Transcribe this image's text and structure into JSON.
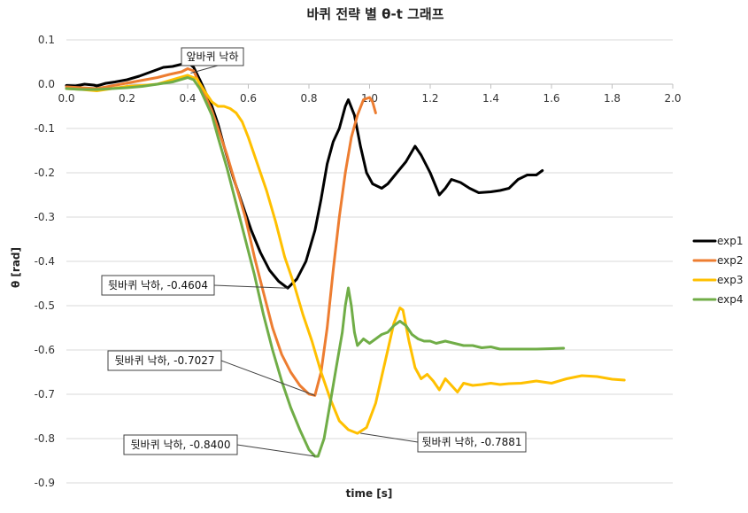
{
  "chart_data": {
    "type": "line",
    "title": "바퀴 전략 별 θ-t 그래프",
    "xlabel": "time [s]",
    "ylabel": "θ [rad]",
    "xlim": [
      0.0,
      2.0
    ],
    "ylim": [
      -0.9,
      0.1
    ],
    "xticks": [
      0.0,
      0.2,
      0.4,
      0.6,
      0.8,
      1.0,
      1.2,
      1.4,
      1.6,
      1.8,
      2.0
    ],
    "yticks": [
      0.1,
      0.0,
      -0.1,
      -0.2,
      -0.3,
      -0.4,
      -0.5,
      -0.6,
      -0.7,
      -0.8,
      -0.9
    ],
    "xtick_labels": [
      "0.0",
      "0.2",
      "0.4",
      "0.6",
      "0.8",
      "1.0",
      "1.2",
      "1.4",
      "1.6",
      "1.8",
      "2.0"
    ],
    "ytick_labels": [
      "0.1",
      "0.0",
      "-0.1",
      "-0.2",
      "-0.3",
      "-0.4",
      "-0.5",
      "-0.6",
      "-0.7",
      "-0.8",
      "-0.9"
    ],
    "grid": true,
    "legend_position": "right",
    "series": [
      {
        "name": "exp1",
        "color": "#000000",
        "points": [
          [
            0.0,
            -0.003
          ],
          [
            0.03,
            -0.004
          ],
          [
            0.06,
            0.0
          ],
          [
            0.09,
            -0.002
          ],
          [
            0.1,
            -0.004
          ],
          [
            0.13,
            0.002
          ],
          [
            0.16,
            0.005
          ],
          [
            0.2,
            0.01
          ],
          [
            0.24,
            0.018
          ],
          [
            0.28,
            0.028
          ],
          [
            0.32,
            0.038
          ],
          [
            0.35,
            0.04
          ],
          [
            0.38,
            0.045
          ],
          [
            0.4,
            0.05
          ],
          [
            0.42,
            0.038
          ],
          [
            0.44,
            0.01
          ],
          [
            0.46,
            -0.02
          ],
          [
            0.48,
            -0.05
          ],
          [
            0.5,
            -0.09
          ],
          [
            0.52,
            -0.14
          ],
          [
            0.55,
            -0.21
          ],
          [
            0.58,
            -0.27
          ],
          [
            0.61,
            -0.33
          ],
          [
            0.64,
            -0.38
          ],
          [
            0.67,
            -0.42
          ],
          [
            0.7,
            -0.445
          ],
          [
            0.73,
            -0.4604
          ],
          [
            0.76,
            -0.44
          ],
          [
            0.79,
            -0.4
          ],
          [
            0.82,
            -0.33
          ],
          [
            0.84,
            -0.26
          ],
          [
            0.86,
            -0.18
          ],
          [
            0.88,
            -0.13
          ],
          [
            0.9,
            -0.1
          ],
          [
            0.92,
            -0.05
          ],
          [
            0.93,
            -0.035
          ],
          [
            0.95,
            -0.07
          ],
          [
            0.97,
            -0.14
          ],
          [
            0.99,
            -0.2
          ],
          [
            1.01,
            -0.225
          ],
          [
            1.04,
            -0.235
          ],
          [
            1.06,
            -0.225
          ],
          [
            1.09,
            -0.2
          ],
          [
            1.12,
            -0.175
          ],
          [
            1.15,
            -0.14
          ],
          [
            1.17,
            -0.16
          ],
          [
            1.2,
            -0.2
          ],
          [
            1.23,
            -0.25
          ],
          [
            1.25,
            -0.235
          ],
          [
            1.27,
            -0.215
          ],
          [
            1.3,
            -0.222
          ],
          [
            1.33,
            -0.235
          ],
          [
            1.36,
            -0.245
          ],
          [
            1.4,
            -0.243
          ],
          [
            1.43,
            -0.24
          ],
          [
            1.46,
            -0.235
          ],
          [
            1.49,
            -0.215
          ],
          [
            1.52,
            -0.205
          ],
          [
            1.55,
            -0.205
          ],
          [
            1.57,
            -0.195
          ]
        ]
      },
      {
        "name": "exp2",
        "color": "#ED7D31",
        "points": [
          [
            0.0,
            -0.006
          ],
          [
            0.05,
            -0.008
          ],
          [
            0.1,
            -0.01
          ],
          [
            0.14,
            -0.005
          ],
          [
            0.18,
            0.0
          ],
          [
            0.22,
            0.005
          ],
          [
            0.26,
            0.01
          ],
          [
            0.3,
            0.015
          ],
          [
            0.34,
            0.022
          ],
          [
            0.38,
            0.028
          ],
          [
            0.4,
            0.035
          ],
          [
            0.42,
            0.03
          ],
          [
            0.44,
            0.0
          ],
          [
            0.46,
            -0.03
          ],
          [
            0.48,
            -0.06
          ],
          [
            0.5,
            -0.1
          ],
          [
            0.53,
            -0.16
          ],
          [
            0.56,
            -0.23
          ],
          [
            0.59,
            -0.3
          ],
          [
            0.62,
            -0.39
          ],
          [
            0.65,
            -0.47
          ],
          [
            0.68,
            -0.55
          ],
          [
            0.71,
            -0.61
          ],
          [
            0.74,
            -0.65
          ],
          [
            0.77,
            -0.68
          ],
          [
            0.8,
            -0.6997
          ],
          [
            0.82,
            -0.7027
          ],
          [
            0.84,
            -0.65
          ],
          [
            0.86,
            -0.55
          ],
          [
            0.88,
            -0.42
          ],
          [
            0.9,
            -0.3
          ],
          [
            0.92,
            -0.2
          ],
          [
            0.94,
            -0.12
          ],
          [
            0.96,
            -0.07
          ],
          [
            0.98,
            -0.035
          ],
          [
            1.0,
            -0.03
          ],
          [
            1.01,
            -0.04
          ],
          [
            1.02,
            -0.065
          ]
        ]
      },
      {
        "name": "exp3",
        "color": "#FFC000",
        "points": [
          [
            0.0,
            -0.01
          ],
          [
            0.05,
            -0.012
          ],
          [
            0.1,
            -0.015
          ],
          [
            0.15,
            -0.01
          ],
          [
            0.2,
            -0.005
          ],
          [
            0.25,
            -0.003
          ],
          [
            0.3,
            0.0
          ],
          [
            0.35,
            0.01
          ],
          [
            0.4,
            0.02
          ],
          [
            0.43,
            0.012
          ],
          [
            0.46,
            -0.02
          ],
          [
            0.48,
            -0.04
          ],
          [
            0.5,
            -0.05
          ],
          [
            0.52,
            -0.05
          ],
          [
            0.54,
            -0.055
          ],
          [
            0.56,
            -0.065
          ],
          [
            0.58,
            -0.085
          ],
          [
            0.6,
            -0.12
          ],
          [
            0.63,
            -0.18
          ],
          [
            0.66,
            -0.24
          ],
          [
            0.69,
            -0.31
          ],
          [
            0.72,
            -0.39
          ],
          [
            0.75,
            -0.45
          ],
          [
            0.78,
            -0.52
          ],
          [
            0.81,
            -0.58
          ],
          [
            0.84,
            -0.65
          ],
          [
            0.87,
            -0.71
          ],
          [
            0.9,
            -0.76
          ],
          [
            0.93,
            -0.78
          ],
          [
            0.96,
            -0.7881
          ],
          [
            0.99,
            -0.775
          ],
          [
            1.02,
            -0.72
          ],
          [
            1.04,
            -0.66
          ],
          [
            1.06,
            -0.6
          ],
          [
            1.08,
            -0.54
          ],
          [
            1.1,
            -0.505
          ],
          [
            1.11,
            -0.51
          ],
          [
            1.13,
            -0.58
          ],
          [
            1.15,
            -0.64
          ],
          [
            1.17,
            -0.665
          ],
          [
            1.19,
            -0.655
          ],
          [
            1.21,
            -0.67
          ],
          [
            1.23,
            -0.69
          ],
          [
            1.25,
            -0.665
          ],
          [
            1.27,
            -0.68
          ],
          [
            1.29,
            -0.695
          ],
          [
            1.31,
            -0.675
          ],
          [
            1.34,
            -0.68
          ],
          [
            1.37,
            -0.678
          ],
          [
            1.4,
            -0.675
          ],
          [
            1.43,
            -0.678
          ],
          [
            1.46,
            -0.676
          ],
          [
            1.5,
            -0.675
          ],
          [
            1.55,
            -0.67
          ],
          [
            1.6,
            -0.675
          ],
          [
            1.65,
            -0.665
          ],
          [
            1.7,
            -0.658
          ],
          [
            1.75,
            -0.66
          ],
          [
            1.8,
            -0.666
          ],
          [
            1.84,
            -0.668
          ]
        ]
      },
      {
        "name": "exp4",
        "color": "#70AD47",
        "points": [
          [
            0.0,
            -0.01
          ],
          [
            0.05,
            -0.012
          ],
          [
            0.1,
            -0.012
          ],
          [
            0.15,
            -0.01
          ],
          [
            0.2,
            -0.008
          ],
          [
            0.25,
            -0.005
          ],
          [
            0.3,
            0.0
          ],
          [
            0.35,
            0.005
          ],
          [
            0.4,
            0.015
          ],
          [
            0.42,
            0.01
          ],
          [
            0.44,
            -0.01
          ],
          [
            0.46,
            -0.04
          ],
          [
            0.48,
            -0.07
          ],
          [
            0.5,
            -0.12
          ],
          [
            0.53,
            -0.19
          ],
          [
            0.56,
            -0.27
          ],
          [
            0.59,
            -0.35
          ],
          [
            0.62,
            -0.43
          ],
          [
            0.65,
            -0.52
          ],
          [
            0.68,
            -0.6
          ],
          [
            0.71,
            -0.67
          ],
          [
            0.74,
            -0.73
          ],
          [
            0.77,
            -0.78
          ],
          [
            0.8,
            -0.825
          ],
          [
            0.82,
            -0.84
          ],
          [
            0.83,
            -0.84
          ],
          [
            0.85,
            -0.8
          ],
          [
            0.87,
            -0.72
          ],
          [
            0.89,
            -0.64
          ],
          [
            0.91,
            -0.56
          ],
          [
            0.92,
            -0.5
          ],
          [
            0.93,
            -0.46
          ],
          [
            0.94,
            -0.5
          ],
          [
            0.95,
            -0.56
          ],
          [
            0.96,
            -0.59
          ],
          [
            0.98,
            -0.575
          ],
          [
            1.0,
            -0.585
          ],
          [
            1.02,
            -0.575
          ],
          [
            1.04,
            -0.565
          ],
          [
            1.06,
            -0.56
          ],
          [
            1.08,
            -0.545
          ],
          [
            1.1,
            -0.535
          ],
          [
            1.12,
            -0.545
          ],
          [
            1.14,
            -0.565
          ],
          [
            1.16,
            -0.575
          ],
          [
            1.18,
            -0.58
          ],
          [
            1.2,
            -0.58
          ],
          [
            1.22,
            -0.585
          ],
          [
            1.25,
            -0.58
          ],
          [
            1.28,
            -0.585
          ],
          [
            1.31,
            -0.59
          ],
          [
            1.34,
            -0.59
          ],
          [
            1.37,
            -0.595
          ],
          [
            1.4,
            -0.593
          ],
          [
            1.43,
            -0.598
          ],
          [
            1.46,
            -0.598
          ],
          [
            1.5,
            -0.598
          ],
          [
            1.55,
            -0.598
          ],
          [
            1.6,
            -0.597
          ],
          [
            1.64,
            -0.596
          ]
        ]
      }
    ],
    "annotations": [
      {
        "text": "앞바퀴 낙하",
        "x": 0.41,
        "y": 0.025
      },
      {
        "text": "뒷바퀴 낙하, -0.4604",
        "x": 0.73,
        "y": -0.4604
      },
      {
        "text": "뒷바퀴 낙하, -0.7027",
        "x": 0.82,
        "y": -0.7027
      },
      {
        "text": "뒷바퀴 낙하, -0.8400",
        "x": 0.82,
        "y": -0.84
      },
      {
        "text": "뒷바퀴 낙하, -0.7881",
        "x": 0.97,
        "y": -0.7881
      }
    ]
  }
}
